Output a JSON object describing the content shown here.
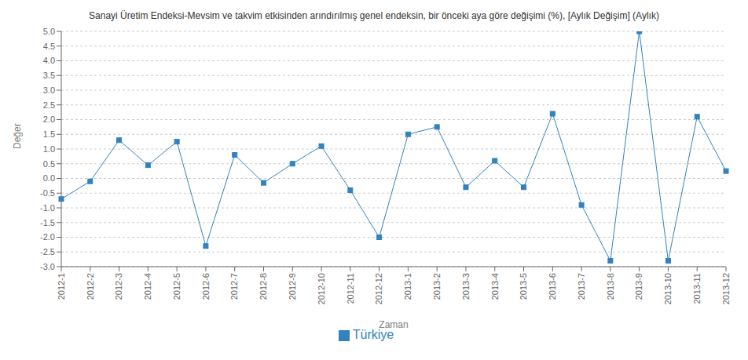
{
  "chart_data": {
    "type": "line",
    "title": "Sanayi Üretim Endeksi-Mevsim ve takvim etkisinden arındırılmış genel endeksin, bir önceki aya göre değişimi (%), [Aylık Değişim] (Aylık)",
    "xlabel": "Zaman",
    "ylabel": "Değer",
    "categories": [
      "2012-1",
      "2012-2",
      "2012-3",
      "2012-4",
      "2012-5",
      "2012-6",
      "2012-7",
      "2012-8",
      "2012-9",
      "2012-10",
      "2012-11",
      "2012-12",
      "2013-1",
      "2013-2",
      "2013-3",
      "2013-4",
      "2013-5",
      "2013-6",
      "2013-7",
      "2013-8",
      "2013-9",
      "2013-10",
      "2013-11",
      "2013-12"
    ],
    "series": [
      {
        "name": "Türkiye",
        "marker": "square",
        "values": [
          -0.7,
          -0.1,
          1.3,
          0.45,
          1.25,
          -2.3,
          0.8,
          -0.15,
          0.5,
          1.1,
          -0.4,
          -2.0,
          1.5,
          1.75,
          -0.3,
          0.6,
          -0.3,
          2.2,
          -0.9,
          -2.8,
          5.0,
          -2.8,
          2.1,
          0.25
        ]
      }
    ],
    "ylim": [
      -3,
      5
    ],
    "yticks": [
      {
        "value": -3,
        "label": "-3.0"
      },
      -2.5,
      {
        "value": -2,
        "label": "-2.0"
      },
      -1.5,
      {
        "value": -1,
        "label": "-1.0"
      },
      -0.5,
      {
        "value": 0,
        "label": "0.0"
      },
      0.5,
      {
        "value": 1,
        "label": "1.0"
      },
      1.5,
      {
        "value": 2,
        "label": "2.0"
      },
      2.5,
      {
        "value": 3,
        "label": "3.0"
      },
      3.5,
      {
        "value": 4,
        "label": "4.0"
      },
      4.5,
      {
        "value": 5,
        "label": "5.0"
      }
    ],
    "grid": true,
    "legend": "bottom"
  }
}
